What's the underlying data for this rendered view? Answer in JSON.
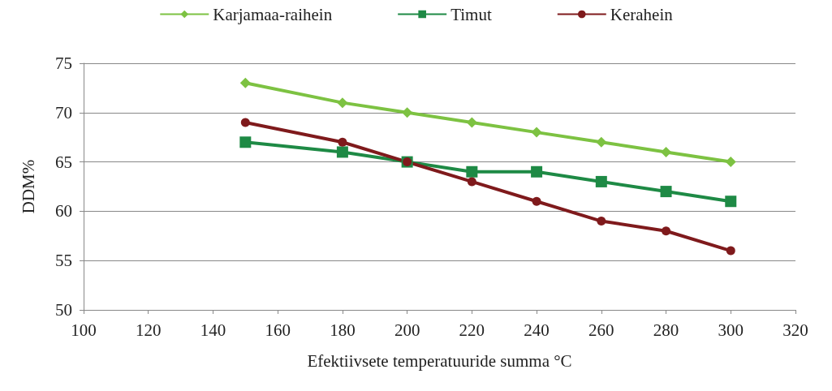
{
  "chart_data": {
    "type": "line",
    "xlabel": "Efektiivsete temperatuuride summa °C",
    "ylabel": "DDM%",
    "x": [
      150,
      180,
      200,
      220,
      240,
      260,
      280,
      300
    ],
    "series": [
      {
        "name": "Karjamaa-raihein",
        "color": "#7dc242",
        "marker": "diamond",
        "values": [
          73,
          71,
          70,
          69,
          68,
          67,
          66,
          65
        ]
      },
      {
        "name": "Timut",
        "color": "#1e8a45",
        "marker": "square",
        "values": [
          67,
          66,
          65,
          64,
          64,
          63,
          62,
          61
        ]
      },
      {
        "name": "Kerahein",
        "color": "#7f1a1c",
        "marker": "circle",
        "values": [
          69,
          67,
          65,
          63,
          61,
          59,
          58,
          56
        ]
      }
    ],
    "xlim": [
      100,
      320
    ],
    "xticks": [
      100,
      120,
      140,
      160,
      180,
      200,
      220,
      240,
      260,
      280,
      300,
      320
    ],
    "ylim": [
      50,
      75
    ],
    "yticks": [
      50,
      55,
      60,
      65,
      70,
      75
    ],
    "grid": "y",
    "legend": "top",
    "line_style": "solid"
  }
}
